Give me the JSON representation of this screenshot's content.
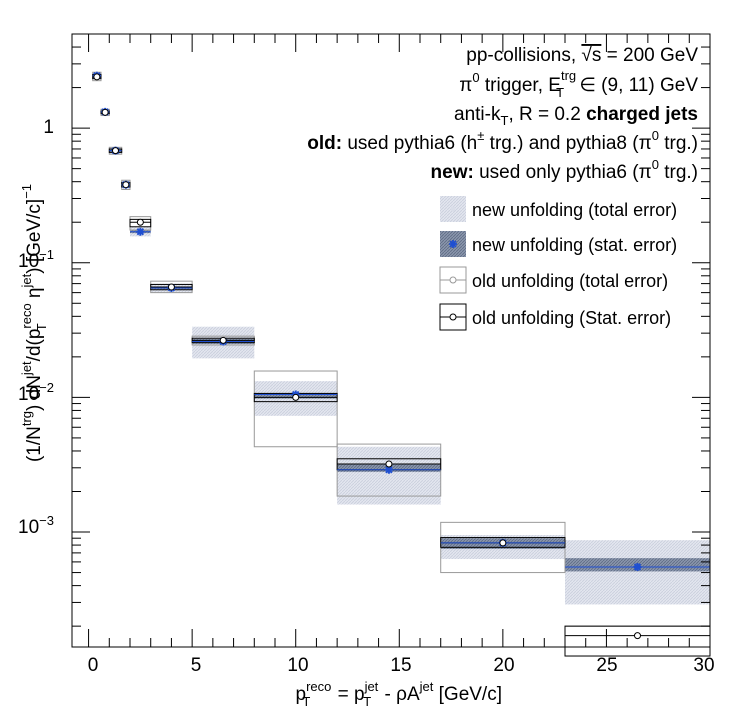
{
  "chart_data": {
    "type": "scatter",
    "log_y": true,
    "xlim": [
      -0.8,
      30
    ],
    "ylim": [
      0.00014,
      5.0
    ],
    "x_major_ticks": [
      0,
      5,
      10,
      15,
      20,
      25,
      30
    ],
    "x_tick_labels": [
      "0",
      "5",
      "10",
      "15",
      "20",
      "25",
      "30"
    ],
    "y_major_ticks": [
      0.001,
      0.01,
      0.1,
      1
    ],
    "y_tick_labels": {
      "t1000": {
        "base": "10",
        "exp": "−3"
      },
      "t100": {
        "base": "10",
        "exp": "−2"
      },
      "t10": {
        "base": "10",
        "exp": "−1"
      },
      "t1": {
        "base": "1",
        "exp": ""
      }
    },
    "xlabel": {
      "p": "p",
      "sup1": "reco",
      "sub1": "T",
      "eq": " = p",
      "sup2": "jet",
      "sub2": "T",
      "minus": " - ρA",
      "sup3": "jet",
      "unit": " [GeV/c]"
    },
    "ylabel": {
      "a": "(1/N",
      "sup_trg": "trg",
      "b": ") dN",
      "sup_jet": "jet",
      "c": "/d(p",
      "sup_reco": "reco",
      "sub_T": "T",
      "d": " η",
      "sup_jet2": "jet",
      "e": ") [GeV/c]",
      "sup_m1": "−1"
    },
    "annotations": {
      "line1": "pp-collisions, ",
      "line1_sqrt": "√s",
      "line1_end": " = 200 GeV",
      "line2_pi": "π",
      "line2_sup0": "0",
      "line2_mid": " trigger, E",
      "line2_sup_trg": "trg",
      "line2_sub_T": "T",
      "line2_end": " ∈ (9, 11) GeV",
      "line3_a": "anti-k",
      "line3_sub_T": "T",
      "line3_b": ", R = 0.2 ",
      "line3_bold": "charged jets",
      "line4_bold": "old:",
      "line4_a": " used pythia6 (h",
      "line4_sup": "±",
      "line4_b": " trg.) and pythia8 (π",
      "line4_sup0": "0",
      "line4_c": " trg.)",
      "line5_bold": "new:",
      "line5_a": " used only pythia6 (π",
      "line5_sup0": "0",
      "line5_b": " trg.)"
    },
    "legend": {
      "position": "top-right",
      "entries": [
        "new unfolding (total error)",
        "new unfolding (stat. error)",
        "old unfolding (total error)",
        "old unfolding (Stat. error)"
      ]
    },
    "colors": {
      "new_total_fill": "#d9dde8",
      "new_stat_fill": "#8f9bb3",
      "new_marker": "#1f4fd1",
      "old_box": "#999999",
      "old_stat_box": "#000000"
    },
    "series": [
      {
        "name": "new unfolding",
        "points": [
          {
            "xlo": 0.2,
            "xhi": 0.6,
            "y": 2.45,
            "tot": [
              2.3,
              2.6
            ],
            "stat": [
              2.38,
              2.52
            ]
          },
          {
            "xlo": 0.6,
            "xhi": 1.0,
            "y": 1.32,
            "tot": [
              1.25,
              1.39
            ],
            "stat": [
              1.29,
              1.35
            ]
          },
          {
            "xlo": 1.0,
            "xhi": 1.6,
            "y": 0.68,
            "tot": [
              0.645,
              0.715
            ],
            "stat": [
              0.665,
              0.695
            ]
          },
          {
            "xlo": 1.6,
            "xhi": 2.0,
            "y": 0.38,
            "tot": [
              0.355,
              0.405
            ],
            "stat": [
              0.37,
              0.39
            ]
          },
          {
            "xlo": 2.0,
            "xhi": 3.0,
            "y": 0.17,
            "tot": [
              0.157,
              0.184
            ],
            "stat": [
              0.166,
              0.175
            ]
          },
          {
            "xlo": 3.0,
            "xhi": 5.0,
            "y": 0.065,
            "tot": [
              0.06,
              0.07
            ],
            "stat": [
              0.0635,
              0.0665
            ]
          },
          {
            "xlo": 5.0,
            "xhi": 8.0,
            "y": 0.026,
            "tot": [
              0.0195,
              0.0335
            ],
            "stat": [
              0.025,
              0.0272
            ]
          },
          {
            "xlo": 8.0,
            "xhi": 12.0,
            "y": 0.0105,
            "tot": [
              0.0073,
              0.0132
            ],
            "stat": [
              0.0098,
              0.0108
            ]
          },
          {
            "xlo": 12.0,
            "xhi": 17.0,
            "y": 0.0029,
            "tot": [
              0.0016,
              0.0043
            ],
            "stat": [
              0.0028,
              0.0032
            ]
          },
          {
            "xlo": 17.0,
            "xhi": 23.0,
            "y": 0.00083,
            "tot": [
              0.00063,
              0.00095
            ],
            "stat": [
              0.00075,
              0.0009
            ]
          },
          {
            "xlo": 23.0,
            "xhi": 30.0,
            "y": 0.00055,
            "tot": [
              0.00029,
              0.00087
            ],
            "stat": [
              0.00051,
              0.00064
            ]
          }
        ]
      },
      {
        "name": "old unfolding",
        "points": [
          {
            "xlo": 0.2,
            "xhi": 0.6,
            "y": 2.4,
            "tot": [
              2.25,
              2.6
            ],
            "stat": [
              2.33,
              2.5
            ]
          },
          {
            "xlo": 0.6,
            "xhi": 1.0,
            "y": 1.31,
            "tot": [
              1.24,
              1.38
            ],
            "stat": [
              1.28,
              1.34
            ]
          },
          {
            "xlo": 1.0,
            "xhi": 1.6,
            "y": 0.68,
            "tot": [
              0.64,
              0.72
            ],
            "stat": [
              0.66,
              0.7
            ]
          },
          {
            "xlo": 1.6,
            "xhi": 2.0,
            "y": 0.38,
            "tot": [
              0.35,
              0.41
            ],
            "stat": [
              0.365,
              0.395
            ]
          },
          {
            "xlo": 2.0,
            "xhi": 3.0,
            "y": 0.2,
            "tot": [
              0.175,
              0.22
            ],
            "stat": [
              0.185,
              0.21
            ]
          },
          {
            "xlo": 3.0,
            "xhi": 5.0,
            "y": 0.066,
            "tot": [
              0.06,
              0.073
            ],
            "stat": [
              0.063,
              0.069
            ]
          },
          {
            "xlo": 5.0,
            "xhi": 8.0,
            "y": 0.0265,
            "tot": [
              0.0245,
              0.0285
            ],
            "stat": [
              0.0255,
              0.0275
            ]
          },
          {
            "xlo": 8.0,
            "xhi": 12.0,
            "y": 0.01,
            "tot": [
              0.0043,
              0.0157
            ],
            "stat": [
              0.0093,
              0.0107
            ]
          },
          {
            "xlo": 12.0,
            "xhi": 17.0,
            "y": 0.0032,
            "tot": [
              0.00185,
              0.0045
            ],
            "stat": [
              0.0029,
              0.0035
            ]
          },
          {
            "xlo": 17.0,
            "xhi": 23.0,
            "y": 0.00083,
            "tot": [
              0.0005,
              0.00118
            ],
            "stat": [
              0.00077,
              0.00091
            ]
          },
          {
            "xlo": 23.0,
            "xhi": 30.0,
            "y": 0.00017,
            "tot": [
              0.00012,
              0.0002
            ],
            "stat": [
              0.00012,
              0.0002
            ]
          }
        ]
      }
    ]
  }
}
